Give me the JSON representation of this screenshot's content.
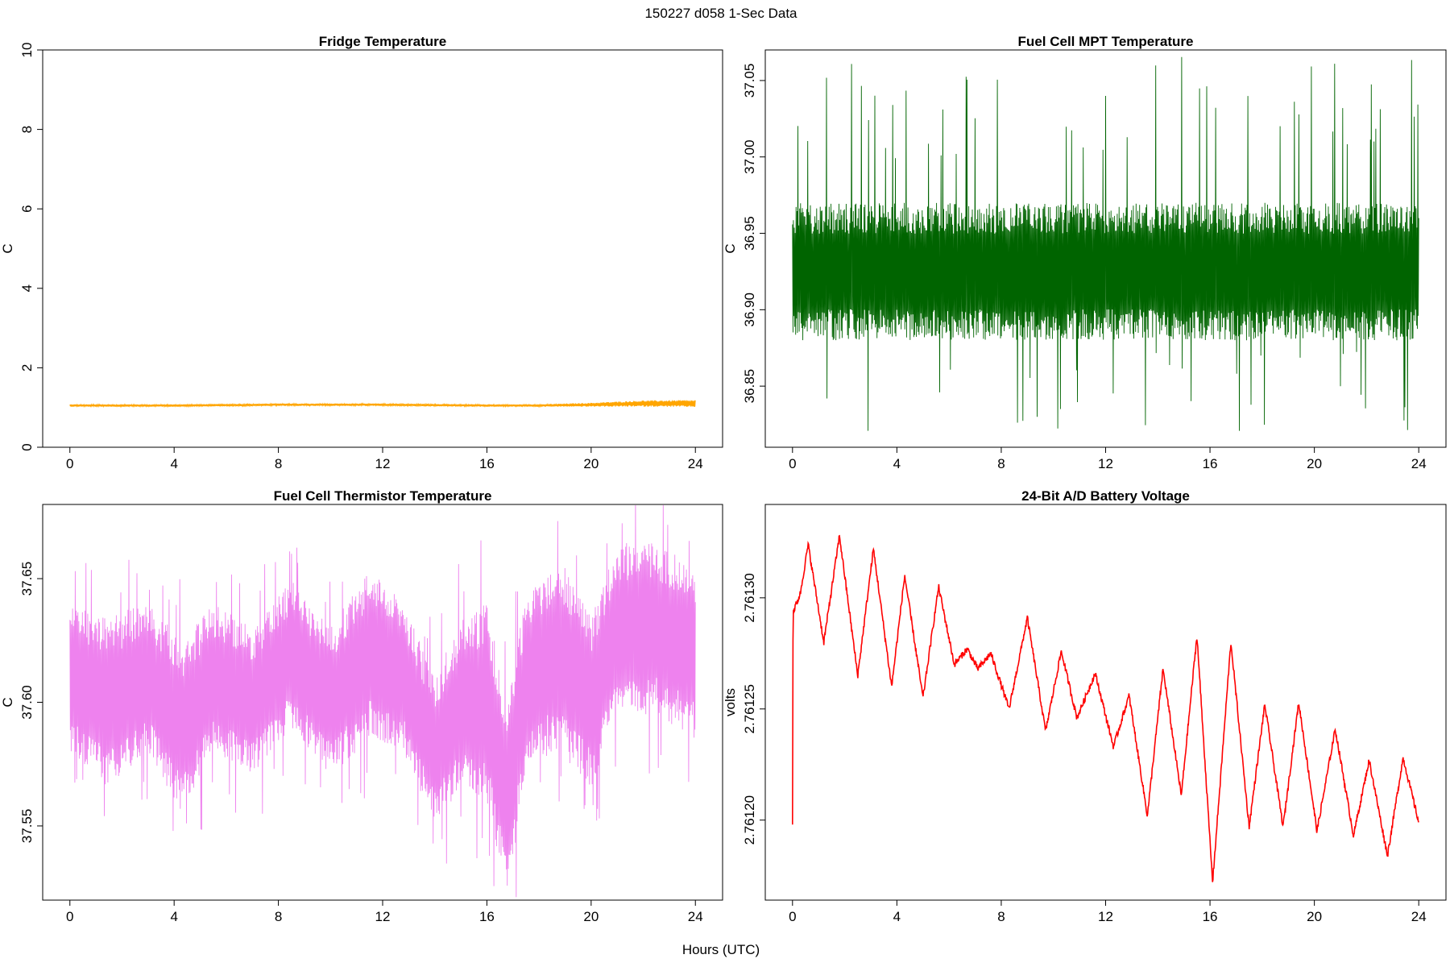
{
  "figure": {
    "title": "150227    d058    1-Sec Data",
    "xlabel": "Hours (UTC)"
  },
  "chart_data": [
    {
      "type": "line",
      "title": "Fridge Temperature",
      "ylabel": "C",
      "color": "#FFA500",
      "xlim": [
        0,
        24
      ],
      "ylim": [
        0,
        10
      ],
      "xticks": [
        0,
        4,
        8,
        12,
        16,
        20,
        24
      ],
      "yticks": [
        0,
        2,
        4,
        6,
        8,
        10
      ],
      "ytick_labels": [
        "0",
        "2",
        "4",
        "6",
        "8",
        "10"
      ],
      "x": [
        0,
        2,
        4,
        6,
        8,
        10,
        12,
        14,
        16,
        18,
        20,
        22,
        24
      ],
      "y": [
        1.05,
        1.05,
        1.05,
        1.06,
        1.07,
        1.07,
        1.07,
        1.06,
        1.05,
        1.05,
        1.07,
        1.1,
        1.1
      ],
      "band": [
        0.03,
        0.03,
        0.03,
        0.03,
        0.03,
        0.03,
        0.03,
        0.03,
        0.03,
        0.03,
        0.05,
        0.08,
        0.09
      ]
    },
    {
      "type": "line",
      "title": "Fuel Cell MPT Temperature",
      "ylabel": "C",
      "color": "#006400",
      "xlim": [
        0,
        24
      ],
      "ylim": [
        36.81,
        37.07
      ],
      "xticks": [
        0,
        4,
        8,
        12,
        16,
        20,
        24
      ],
      "yticks": [
        36.85,
        36.9,
        36.95,
        37.0,
        37.05
      ],
      "ytick_labels": [
        "36.85",
        "36.90",
        "36.95",
        "37.00",
        "37.05"
      ],
      "x": [
        0,
        4,
        8,
        12,
        16,
        20,
        24
      ],
      "y": [
        36.925,
        36.925,
        36.925,
        36.925,
        36.925,
        36.925,
        36.925
      ],
      "band": [
        0.045,
        0.045,
        0.045,
        0.045,
        0.045,
        0.045,
        0.045
      ],
      "spike_max": 37.07,
      "spike_min": 36.82
    },
    {
      "type": "line",
      "title": "Fuel Cell Thermistor Temperature",
      "ylabel": "C",
      "color": "#EE82EE",
      "xlim": [
        0,
        24
      ],
      "ylim": [
        37.52,
        37.68
      ],
      "xticks": [
        0,
        4,
        8,
        12,
        16,
        20,
        24
      ],
      "yticks": [
        37.55,
        37.6,
        37.65
      ],
      "ytick_labels": [
        "37.55",
        "37.60",
        "37.65"
      ],
      "x": [
        0,
        1.5,
        3,
        4.3,
        5.5,
        7,
        8.5,
        10,
        11.5,
        12.8,
        14,
        15,
        16,
        16.8,
        17.5,
        18.8,
        20,
        21,
        22.5,
        24
      ],
      "y": [
        37.61,
        37.6,
        37.61,
        37.59,
        37.61,
        37.6,
        37.62,
        37.6,
        37.62,
        37.61,
        37.58,
        37.6,
        37.6,
        37.56,
        37.61,
        37.62,
        37.6,
        37.63,
        37.63,
        37.62
      ],
      "band": [
        0.03,
        0.035,
        0.03,
        0.035,
        0.03,
        0.03,
        0.03,
        0.03,
        0.035,
        0.03,
        0.03,
        0.035,
        0.04,
        0.04,
        0.035,
        0.04,
        0.035,
        0.035,
        0.035,
        0.035
      ]
    },
    {
      "type": "line",
      "title": "24-Bit A/D Battery Voltage",
      "ylabel": "volts",
      "color": "#FF0000",
      "xlim": [
        0,
        24
      ],
      "ylim": [
        2.761164,
        2.761342
      ],
      "xticks": [
        0,
        4,
        8,
        12,
        16,
        20,
        24
      ],
      "yticks": [
        2.7612,
        2.76125,
        2.7613
      ],
      "ytick_labels": [
        "2.76120",
        "2.76125",
        "2.76130"
      ],
      "x": [
        0,
        0.02,
        0.04,
        0.3,
        0.6,
        1.2,
        1.8,
        2.5,
        3.1,
        3.8,
        4.3,
        5.0,
        5.6,
        6.2,
        6.7,
        7.1,
        7.6,
        8.3,
        9.0,
        9.7,
        10.3,
        10.9,
        11.6,
        12.3,
        12.9,
        13.6,
        14.2,
        14.9,
        15.5,
        16.1,
        16.8,
        17.5,
        18.1,
        18.8,
        19.4,
        20.1,
        20.8,
        21.5,
        22.1,
        22.8,
        23.4,
        24.0
      ],
      "y": [
        2.761198,
        2.761295,
        2.761294,
        2.761302,
        2.761324,
        2.76128,
        2.761328,
        2.761265,
        2.761322,
        2.76126,
        2.76131,
        2.761255,
        2.761305,
        2.76127,
        2.761277,
        2.761268,
        2.761275,
        2.76125,
        2.761291,
        2.76124,
        2.761276,
        2.761246,
        2.761266,
        2.761233,
        2.761256,
        2.761202,
        2.761268,
        2.761211,
        2.761283,
        2.761172,
        2.76128,
        2.761197,
        2.761252,
        2.761197,
        2.761253,
        2.761195,
        2.761241,
        2.761193,
        2.761227,
        2.761184,
        2.761228,
        2.761199
      ],
      "band": [
        0,
        1.5e-06,
        1.5e-06,
        1.5e-06,
        1.5e-06,
        1.5e-06,
        1.5e-06,
        1.5e-06,
        1.5e-06,
        1.5e-06,
        1.5e-06,
        1.5e-06,
        1.5e-06,
        1.5e-06,
        1.5e-06,
        1.5e-06,
        1.5e-06,
        1.5e-06,
        1.5e-06,
        1.5e-06,
        1.5e-06,
        1.5e-06,
        1.5e-06,
        1.5e-06,
        1.5e-06,
        1.5e-06,
        1.5e-06,
        1.5e-06,
        1.5e-06,
        1.5e-06,
        1.5e-06,
        1.5e-06,
        1.5e-06,
        1.5e-06,
        1.5e-06,
        1.5e-06,
        1.5e-06,
        1.5e-06,
        1.5e-06,
        1.5e-06,
        1.5e-06,
        1.5e-06
      ]
    }
  ]
}
